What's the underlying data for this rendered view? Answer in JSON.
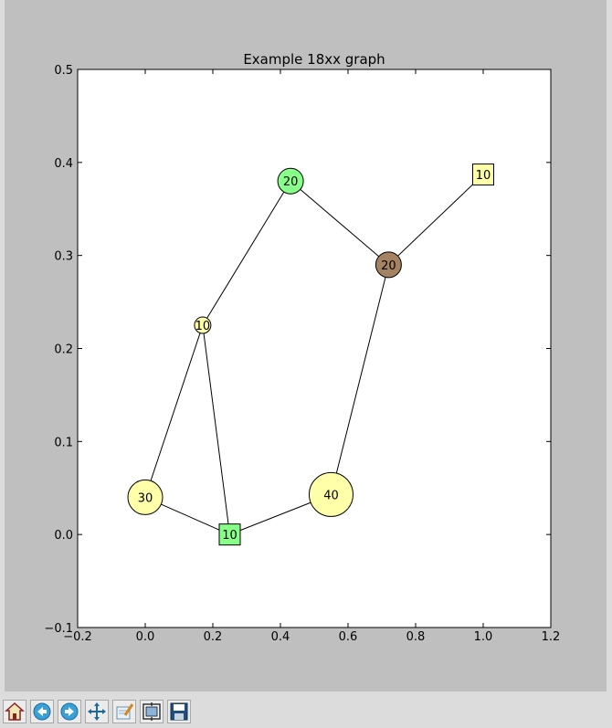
{
  "chart_data": {
    "type": "scatter",
    "title": "Example 18xx graph",
    "xlabel": "",
    "ylabel": "",
    "xlim": [
      -0.2,
      1.2
    ],
    "ylim": [
      -0.1,
      0.5
    ],
    "xticks": [
      "−0.2",
      "0.0",
      "0.2",
      "0.4",
      "0.6",
      "0.8",
      "1.0",
      "1.2"
    ],
    "yticks": [
      "−0.1",
      "0.0",
      "0.1",
      "0.2",
      "0.3",
      "0.4",
      "0.5"
    ],
    "grid": false,
    "nodes": [
      {
        "id": "n30",
        "label": "30",
        "x": 0.0,
        "y": 0.04,
        "shape": "circle",
        "value": 30,
        "color": "#ffffaa"
      },
      {
        "id": "n10sq_bottom",
        "label": "10",
        "x": 0.25,
        "y": 0.0,
        "shape": "square",
        "value": 10,
        "color": "#88ff88"
      },
      {
        "id": "n10c",
        "label": "10",
        "x": 0.17,
        "y": 0.225,
        "shape": "circle",
        "value": 10,
        "color": "#ffffaa"
      },
      {
        "id": "n20green",
        "label": "20",
        "x": 0.43,
        "y": 0.38,
        "shape": "circle",
        "value": 20,
        "color": "#88ff88"
      },
      {
        "id": "n20brown",
        "label": "20",
        "x": 0.72,
        "y": 0.29,
        "shape": "circle",
        "value": 20,
        "color": "#a58362"
      },
      {
        "id": "n40",
        "label": "40",
        "x": 0.55,
        "y": 0.043,
        "shape": "circle",
        "value": 40,
        "color": "#ffffaa"
      },
      {
        "id": "n10sq_top",
        "label": "10",
        "x": 1.0,
        "y": 0.387,
        "shape": "square",
        "value": 10,
        "color": "#ffffaa"
      }
    ],
    "edges": [
      [
        "n30",
        "n10c"
      ],
      [
        "n30",
        "n10sq_bottom"
      ],
      [
        "n10c",
        "n10sq_bottom"
      ],
      [
        "n10c",
        "n20green"
      ],
      [
        "n20green",
        "n20brown"
      ],
      [
        "n20brown",
        "n10sq_top"
      ],
      [
        "n20brown",
        "n40"
      ],
      [
        "n40",
        "n10sq_bottom"
      ]
    ]
  },
  "toolbar": {
    "buttons": [
      {
        "name": "home-button",
        "icon": "home-icon"
      },
      {
        "name": "back-button",
        "icon": "back-arrow-icon"
      },
      {
        "name": "forward-button",
        "icon": "forward-arrow-icon"
      },
      {
        "name": "pan-button",
        "icon": "pan-move-icon"
      },
      {
        "name": "zoom-button",
        "icon": "zoom-rect-icon"
      },
      {
        "name": "subplots-button",
        "icon": "subplots-config-icon"
      },
      {
        "name": "save-button",
        "icon": "save-floppy-icon"
      }
    ]
  },
  "colors": {
    "figure_bg": "#bfbfbf",
    "axes_bg": "#ffffff",
    "toolbar_bg": "#dcdcdc"
  }
}
